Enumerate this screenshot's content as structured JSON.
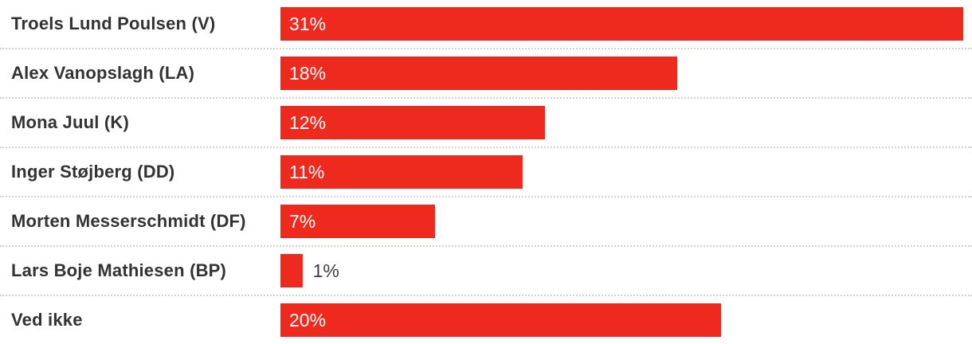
{
  "chart_data": {
    "type": "bar",
    "orientation": "horizontal",
    "title": "",
    "xlabel": "",
    "ylabel": "",
    "xlim": [
      0,
      31
    ],
    "grid": "dotted horizontal row separators",
    "legend": "none",
    "value_label_format": "percent",
    "categories": [
      "Troels Lund Poulsen (V)",
      "Alex Vanopslagh (LA)",
      "Mona Juul (K)",
      "Inger Støjberg (DD)",
      "Morten Messerschmidt (DF)",
      "Lars Boje Mathiesen (BP)",
      "Ved ikke"
    ],
    "values": [
      31,
      18,
      12,
      11,
      7,
      1,
      20
    ],
    "rows": [
      {
        "category": "Troels Lund Poulsen (V)",
        "value": 31,
        "display": "31%"
      },
      {
        "category": "Alex Vanopslagh (LA)",
        "value": 18,
        "display": "18%"
      },
      {
        "category": "Mona Juul (K)",
        "value": 12,
        "display": "12%"
      },
      {
        "category": "Inger Støjberg (DD)",
        "value": 11,
        "display": "11%"
      },
      {
        "category": "Morten Messerschmidt (DF)",
        "value": 7,
        "display": "7%"
      },
      {
        "category": "Lars Boje Mathiesen (BP)",
        "value": 1,
        "display": "1%"
      },
      {
        "category": "Ved ikke",
        "value": 20,
        "display": "20%"
      }
    ],
    "colors": {
      "bar": "#ee2a1e",
      "category_label": "#333333",
      "value_label_inside": "#ffffff",
      "value_label_outside": "#3d3d3d",
      "separator": "#d2d2d2",
      "background": "#ffffff"
    }
  }
}
